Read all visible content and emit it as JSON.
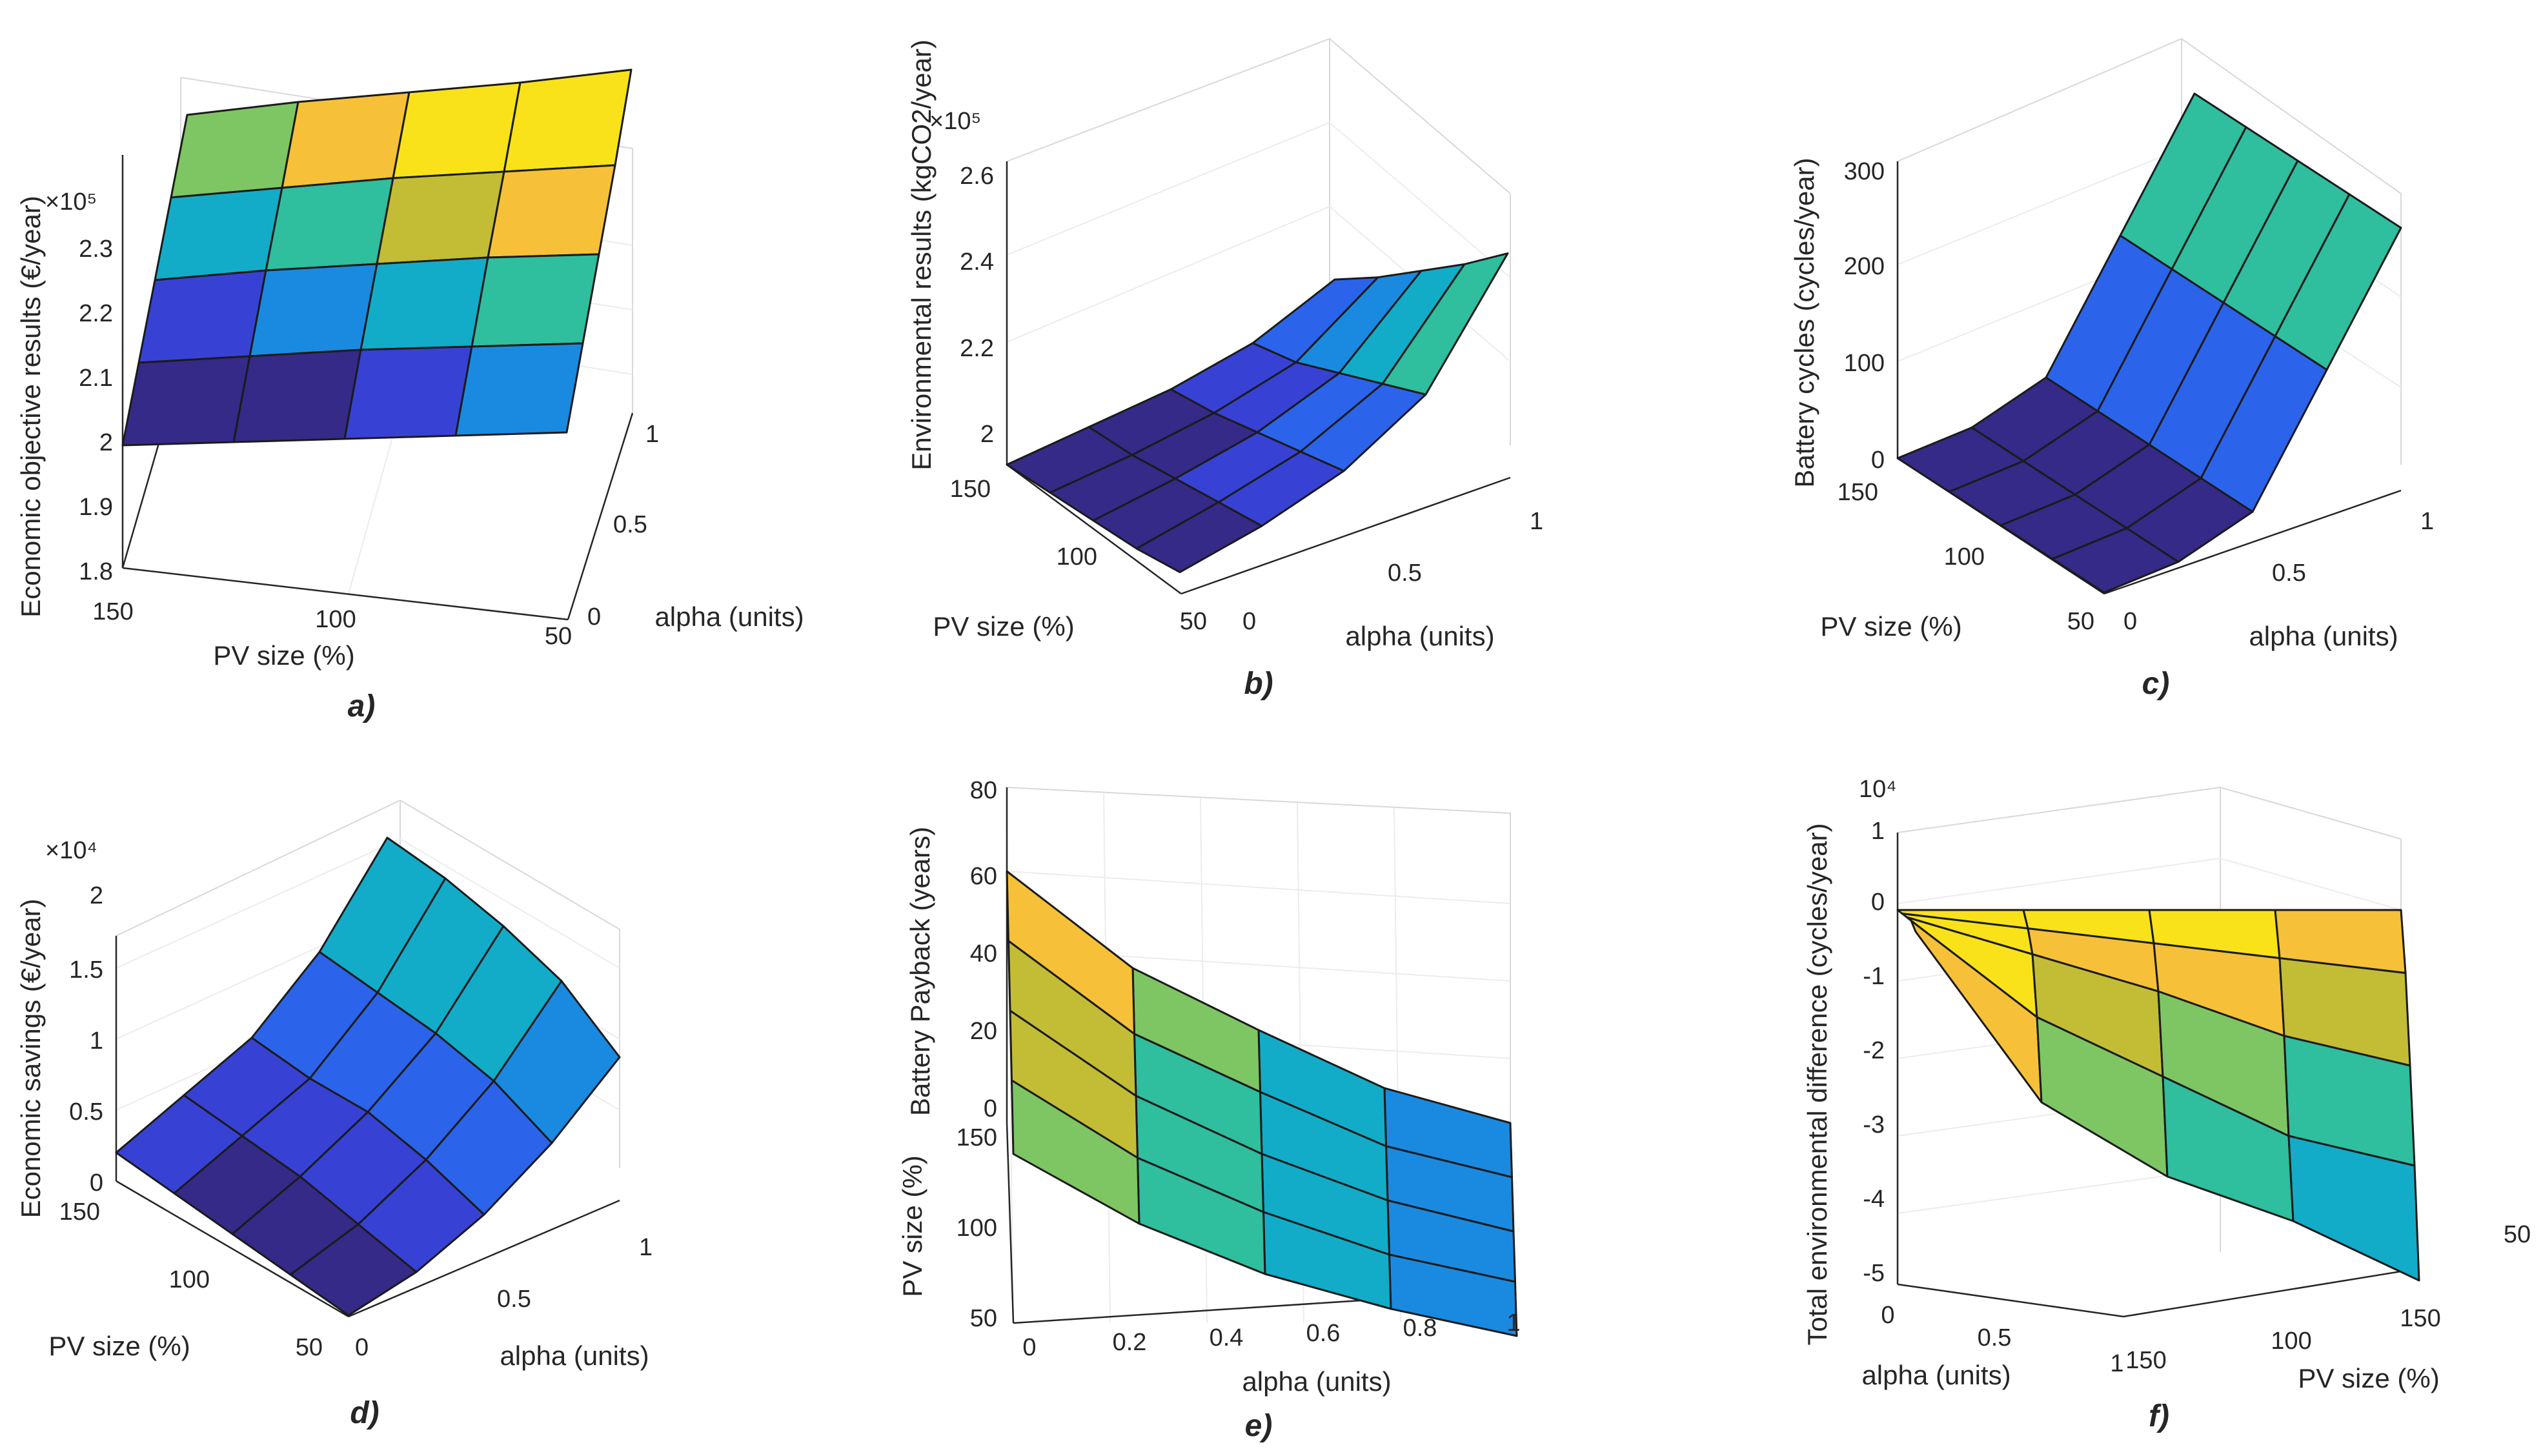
{
  "chart_data": [
    {
      "id": "a",
      "type": "surface3d",
      "caption": "a)",
      "xlabel": "PV size (%)",
      "ylabel": "alpha (units)",
      "zlabel": "Economic objective results (€/year)",
      "z_multiplier": "×10⁵",
      "x_ticks": [
        "150",
        "100",
        "50"
      ],
      "y_ticks": [
        "0",
        "0.5",
        "1"
      ],
      "z_ticks": [
        "1.8",
        "1.9",
        "2",
        "2.1",
        "2.2",
        "2.3"
      ],
      "colormap": "parula",
      "values": [
        [
          1.99,
          2.04,
          2.09,
          2.14,
          2.19
        ],
        [
          2.015,
          2.07,
          2.125,
          2.175,
          2.23
        ],
        [
          2.04,
          2.1,
          2.155,
          2.21,
          2.265
        ],
        [
          2.065,
          2.125,
          2.185,
          2.24,
          2.3
        ],
        [
          2.09,
          2.15,
          2.21,
          2.27,
          2.34
        ]
      ]
    },
    {
      "id": "b",
      "type": "surface3d",
      "caption": "b)",
      "xlabel": "PV size (%)",
      "ylabel": "alpha (units)",
      "zlabel": "Environmental results (kgCO2/year)",
      "z_multiplier": "×10⁵",
      "x_ticks": [
        "150",
        "100",
        "50"
      ],
      "y_ticks": [
        "0",
        "0.5",
        "1"
      ],
      "z_ticks": [
        "2",
        "2.2",
        "2.4",
        "2.6"
      ],
      "colormap": "parula",
      "values": [
        [
          2.0,
          2.02,
          2.04,
          2.08,
          2.16
        ],
        [
          2.01,
          2.03,
          2.06,
          2.11,
          2.24
        ],
        [
          2.02,
          2.05,
          2.09,
          2.16,
          2.33
        ],
        [
          2.03,
          2.07,
          2.12,
          2.21,
          2.42
        ],
        [
          2.05,
          2.09,
          2.15,
          2.26,
          2.52
        ]
      ]
    },
    {
      "id": "c",
      "type": "surface3d",
      "caption": "c)",
      "xlabel": "PV size (%)",
      "ylabel": "alpha (units)",
      "zlabel": "Battery cycles (cycles/year)",
      "x_ticks": [
        "150",
        "100",
        "50"
      ],
      "y_ticks": [
        "0",
        "0.5",
        "1"
      ],
      "z_ticks": [
        "0",
        "100",
        "200",
        "300"
      ],
      "colormap": "parula",
      "values": [
        [
          0,
          5,
          30,
          150,
          270
        ],
        [
          0,
          5,
          30,
          150,
          270
        ],
        [
          0,
          5,
          30,
          150,
          270
        ],
        [
          0,
          5,
          30,
          150,
          270
        ],
        [
          0,
          5,
          30,
          150,
          270
        ]
      ]
    },
    {
      "id": "d",
      "type": "surface3d",
      "caption": "d)",
      "xlabel": "PV size (%)",
      "ylabel": "alpha (units)",
      "zlabel": "Economic savings (€/year)",
      "z_multiplier": "×10⁴",
      "x_ticks": [
        "150",
        "100",
        "50"
      ],
      "y_ticks": [
        "0",
        "0.5",
        "1"
      ],
      "z_ticks": [
        "0",
        "0.5",
        "1",
        "1.5",
        "2"
      ],
      "colormap": "parula",
      "values": [
        [
          0.2,
          0.4,
          0.6,
          1.0,
          1.6
        ],
        [
          0.15,
          0.35,
          0.55,
          0.95,
          1.55
        ],
        [
          0.1,
          0.3,
          0.55,
          0.9,
          1.45
        ],
        [
          0.05,
          0.2,
          0.45,
          0.8,
          1.3
        ],
        [
          0.0,
          0.1,
          0.3,
          0.6,
          1.0
        ]
      ]
    },
    {
      "id": "e",
      "type": "surface3d",
      "caption": "e)",
      "xlabel": "alpha (units)",
      "ylabel": "PV size (%)",
      "zlabel": "Battery Payback (years)",
      "x_ticks": [
        "0",
        "0.2",
        "0.4",
        "0.6",
        "0.8",
        "1"
      ],
      "y_ticks": [
        "150",
        "100",
        "50"
      ],
      "z_ticks": [
        "0",
        "20",
        "40",
        "60",
        "80"
      ],
      "colormap": "parula",
      "values": [
        [
          65,
          42,
          28,
          15,
          8
        ],
        [
          60,
          38,
          25,
          13,
          7
        ],
        [
          55,
          35,
          22,
          12,
          6
        ],
        [
          50,
          32,
          20,
          11,
          6
        ],
        [
          44,
          28,
          17,
          10,
          5
        ]
      ]
    },
    {
      "id": "f",
      "type": "surface3d",
      "caption": "f)",
      "xlabel": "PV size (%)",
      "ylabel": "alpha (units)",
      "zlabel": "Total environmental difference (cycles/year)",
      "z_multiplier": "10⁴",
      "x_ticks": [
        "150",
        "100",
        "50"
      ],
      "x_tick_far": "150",
      "y_ticks": [
        "0",
        "0.5",
        "1"
      ],
      "z_ticks": [
        "-5",
        "-4",
        "-3",
        "-2",
        "-1",
        "0",
        "1"
      ],
      "colormap": "parula",
      "values": [
        [
          0,
          0.1,
          0.2,
          0.3,
          0.3
        ],
        [
          0,
          -0.1,
          -0.3,
          -1.0,
          -2.0
        ],
        [
          0,
          -0.3,
          -0.8,
          -1.8,
          -3.0
        ],
        [
          0,
          -0.5,
          -1.4,
          -2.6,
          -3.6
        ],
        [
          0,
          -0.7,
          -1.8,
          -3.0,
          -4.4
        ]
      ]
    }
  ]
}
